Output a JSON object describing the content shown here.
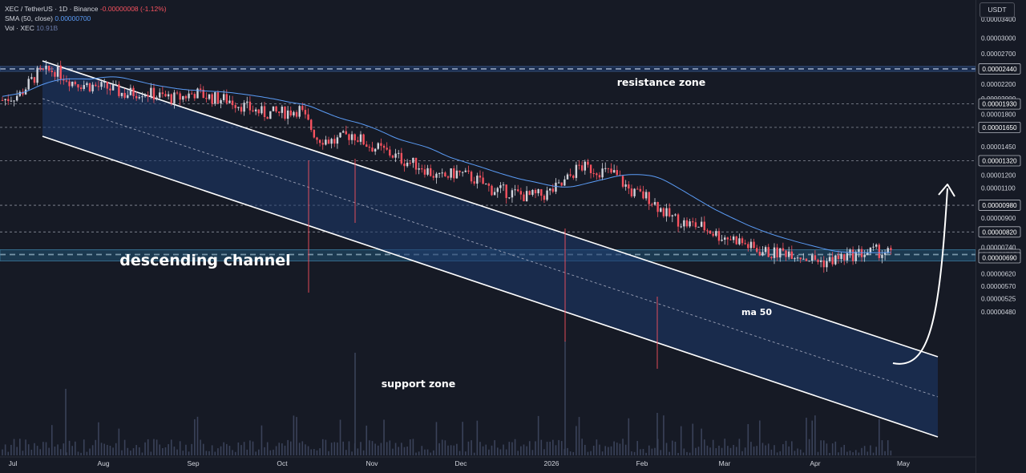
{
  "legend": {
    "symbol": "XEC / TetherUS · 1D · Binance",
    "change": "-0.00000008 (-1.12%)",
    "sma_label": "SMA (50, close)",
    "sma_value": "0.00000700",
    "vol_label": "Vol · XEC",
    "vol_value": "10.91B"
  },
  "currency": "USDT",
  "colors": {
    "background": "#161a25",
    "up_candle": "#d1d4dc",
    "down_candle": "#f7525f",
    "channel_fill": "#1d3a6e",
    "zone_fill": "#1f4f6e",
    "sma_line": "#5b9cf6",
    "volume": "#3a4259",
    "text": "#d1d4dc",
    "white": "#ffffff"
  },
  "chart_data": {
    "type": "candlestick",
    "title": "XEC / TetherUS · 1D · Binance",
    "x_ticks": [
      "Jul",
      "Aug",
      "Sep",
      "Oct",
      "Nov",
      "Dec",
      "2026",
      "Feb",
      "Mar",
      "Apr",
      "May"
    ],
    "y_ticks": [
      "0.00003400",
      "0.00003000",
      "0.00002700",
      "0.00002440",
      "0.00002200",
      "0.00002000",
      "0.00001930",
      "0.00001800",
      "0.00001650",
      "0.00001450",
      "0.00001320",
      "0.00001200",
      "0.00001100",
      "0.00000980",
      "0.00000900",
      "0.00000820",
      "0.00000740",
      "0.00000705",
      "0.00000690",
      "0.00000620",
      "0.00000570",
      "0.00000525",
      "0.00000480"
    ],
    "highlighted_levels": [
      "0.00002440",
      "0.00001930",
      "0.00001650",
      "0.00001320",
      "0.00000980",
      "0.00000820",
      "0.00000705",
      "0.00000690"
    ],
    "price_range": [
      4.7e-06,
      3.9e-06
    ],
    "log_scale": true,
    "series": [
      {
        "name": "XEC / TetherUS",
        "type": "candlestick",
        "closes": [
          1.98e-05,
          2.06e-05,
          2.36e-05,
          2.42e-05,
          2.24e-05,
          2.18e-05,
          2.15e-05,
          2.06e-05,
          2.1e-05,
          2.03e-05,
          2e-05,
          2.08e-05,
          2.01e-05,
          1.98e-05,
          1.88e-05,
          1.81e-05,
          1.82e-05,
          1.86e-05,
          1.54e-05,
          1.5e-05,
          1.58e-05,
          1.46e-05,
          1.4e-05,
          1.32e-05,
          1.27e-05,
          1.17e-05,
          1.22e-05,
          1.17e-05,
          1.09e-05,
          1.07e-05,
          1.04e-05,
          1.05e-05,
          1.12e-05,
          1.27e-05,
          1.24e-05,
          1.21e-05,
          1.07e-05,
          1.03e-05,
          9.2e-06,
          8.7e-06,
          8.5e-06,
          8e-06,
          7.8e-06,
          7.3e-06,
          7.1e-06,
          7.2e-06,
          6.9e-06,
          6.7e-06,
          6.9e-06,
          7.1e-06,
          7.2e-06,
          7.1e-06
        ]
      },
      {
        "name": "SMA (50, close)",
        "type": "line",
        "last_value": "0.00000700"
      },
      {
        "name": "Vol · XEC",
        "type": "bar",
        "last_value": "10.91B"
      }
    ],
    "annotations": [
      "resistance zone",
      "descending channel",
      "ma 50",
      "support zone"
    ],
    "zones": [
      {
        "name": "resistance zone",
        "from": "0.00002400",
        "to": "0.00002480"
      },
      {
        "name": "support zone",
        "from": "0.00000690",
        "to": "0.00000705"
      }
    ]
  }
}
